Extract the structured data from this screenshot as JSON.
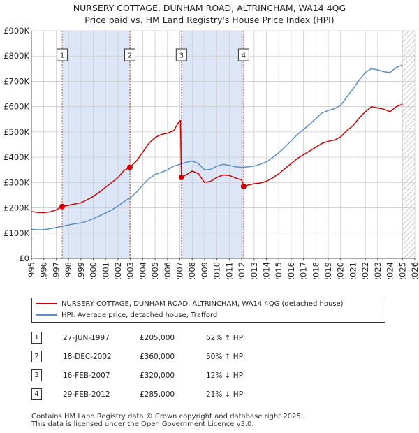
{
  "title_line1": "NURSERY COTTAGE, DUNHAM ROAD, ALTRINCHAM, WA14 4QG",
  "title_line2": "Price paid vs. HM Land Registry's House Price Index (HPI)",
  "colors": {
    "property": "#cc0000",
    "hpi": "#5b8ec9",
    "shade": "#dde6f7",
    "grid": "#cccccc",
    "hatch": "#aaaaaa"
  },
  "chart_data": {
    "type": "line",
    "title": "NURSERY COTTAGE, DUNHAM ROAD, ALTRINCHAM, WA14 4QG — Price paid vs. HM Land Registry's House Price Index (HPI)",
    "xlim": [
      1995,
      2026
    ],
    "ylim": [
      0,
      900000
    ],
    "x_ticks": [
      "1995",
      "1996",
      "1997",
      "1998",
      "1999",
      "2000",
      "2001",
      "2002",
      "2003",
      "2004",
      "2005",
      "2006",
      "2007",
      "2008",
      "2009",
      "2010",
      "2011",
      "2012",
      "2013",
      "2014",
      "2015",
      "2016",
      "2017",
      "2018",
      "2019",
      "2020",
      "2021",
      "2022",
      "2023",
      "2024",
      "2025",
      "2026"
    ],
    "y_ticks": [
      {
        "value": 0,
        "label": "£0"
      },
      {
        "value": 100000,
        "label": "£100K"
      },
      {
        "value": 200000,
        "label": "£200K"
      },
      {
        "value": 300000,
        "label": "£300K"
      },
      {
        "value": 400000,
        "label": "£400K"
      },
      {
        "value": 500000,
        "label": "£500K"
      },
      {
        "value": 600000,
        "label": "£600K"
      },
      {
        "value": 700000,
        "label": "£700K"
      },
      {
        "value": 800000,
        "label": "£800K"
      },
      {
        "value": 900000,
        "label": "£900K"
      }
    ],
    "shaded_ranges": [
      [
        1997.49,
        2002.96
      ],
      [
        2007.13,
        2012.16
      ]
    ],
    "hatched_from": 2025.0,
    "series": [
      {
        "name": "NURSERY COTTAGE, DUNHAM ROAD, ALTRINCHAM, WA14 4QG (detached house)",
        "color": "#cc0000",
        "points": [
          [
            1995.0,
            185000
          ],
          [
            1995.5,
            182000
          ],
          [
            1996.0,
            181000
          ],
          [
            1996.5,
            184000
          ],
          [
            1997.0,
            192000
          ],
          [
            1997.49,
            205000
          ],
          [
            1998.0,
            210000
          ],
          [
            1998.5,
            215000
          ],
          [
            1999.0,
            220000
          ],
          [
            1999.5,
            232000
          ],
          [
            2000.0,
            245000
          ],
          [
            2000.5,
            262000
          ],
          [
            2001.0,
            282000
          ],
          [
            2001.5,
            300000
          ],
          [
            2002.0,
            320000
          ],
          [
            2002.5,
            348000
          ],
          [
            2002.96,
            360000
          ],
          [
            2003.5,
            385000
          ],
          [
            2004.0,
            420000
          ],
          [
            2004.5,
            455000
          ],
          [
            2005.0,
            478000
          ],
          [
            2005.5,
            490000
          ],
          [
            2006.0,
            495000
          ],
          [
            2006.5,
            505000
          ],
          [
            2006.95,
            542000
          ],
          [
            2007.05,
            545000
          ],
          [
            2007.13,
            320000
          ],
          [
            2007.5,
            330000
          ],
          [
            2008.0,
            345000
          ],
          [
            2008.5,
            335000
          ],
          [
            2009.0,
            300000
          ],
          [
            2009.5,
            305000
          ],
          [
            2010.0,
            320000
          ],
          [
            2010.5,
            330000
          ],
          [
            2011.0,
            328000
          ],
          [
            2011.5,
            318000
          ],
          [
            2012.0,
            310000
          ],
          [
            2012.16,
            285000
          ],
          [
            2012.5,
            290000
          ],
          [
            2013.0,
            295000
          ],
          [
            2013.5,
            298000
          ],
          [
            2014.0,
            305000
          ],
          [
            2014.5,
            318000
          ],
          [
            2015.0,
            335000
          ],
          [
            2015.5,
            355000
          ],
          [
            2016.0,
            375000
          ],
          [
            2016.5,
            395000
          ],
          [
            2017.0,
            410000
          ],
          [
            2017.5,
            425000
          ],
          [
            2018.0,
            440000
          ],
          [
            2018.5,
            455000
          ],
          [
            2019.0,
            463000
          ],
          [
            2019.5,
            468000
          ],
          [
            2020.0,
            480000
          ],
          [
            2020.5,
            505000
          ],
          [
            2021.0,
            525000
          ],
          [
            2021.5,
            555000
          ],
          [
            2022.0,
            580000
          ],
          [
            2022.5,
            600000
          ],
          [
            2023.0,
            595000
          ],
          [
            2023.5,
            590000
          ],
          [
            2024.0,
            580000
          ],
          [
            2024.5,
            600000
          ],
          [
            2025.0,
            610000
          ]
        ]
      },
      {
        "name": "HPI: Average price, detached house, Trafford",
        "color": "#5b8ec9",
        "points": [
          [
            1995.0,
            115000
          ],
          [
            1995.5,
            113000
          ],
          [
            1996.0,
            114000
          ],
          [
            1996.5,
            117000
          ],
          [
            1997.0,
            122000
          ],
          [
            1997.5,
            127000
          ],
          [
            1998.0,
            132000
          ],
          [
            1998.5,
            137000
          ],
          [
            1999.0,
            140000
          ],
          [
            1999.5,
            147000
          ],
          [
            2000.0,
            157000
          ],
          [
            2000.5,
            168000
          ],
          [
            2001.0,
            180000
          ],
          [
            2001.5,
            192000
          ],
          [
            2002.0,
            207000
          ],
          [
            2002.5,
            225000
          ],
          [
            2003.0,
            240000
          ],
          [
            2003.5,
            262000
          ],
          [
            2004.0,
            290000
          ],
          [
            2004.5,
            315000
          ],
          [
            2005.0,
            332000
          ],
          [
            2005.5,
            340000
          ],
          [
            2006.0,
            350000
          ],
          [
            2006.5,
            365000
          ],
          [
            2007.0,
            372000
          ],
          [
            2007.5,
            380000
          ],
          [
            2008.0,
            385000
          ],
          [
            2008.5,
            375000
          ],
          [
            2009.0,
            350000
          ],
          [
            2009.5,
            352000
          ],
          [
            2010.0,
            365000
          ],
          [
            2010.5,
            372000
          ],
          [
            2011.0,
            368000
          ],
          [
            2011.5,
            362000
          ],
          [
            2012.0,
            360000
          ],
          [
            2012.5,
            362000
          ],
          [
            2013.0,
            365000
          ],
          [
            2013.5,
            372000
          ],
          [
            2014.0,
            382000
          ],
          [
            2014.5,
            398000
          ],
          [
            2015.0,
            418000
          ],
          [
            2015.5,
            440000
          ],
          [
            2016.0,
            465000
          ],
          [
            2016.5,
            490000
          ],
          [
            2017.0,
            510000
          ],
          [
            2017.5,
            530000
          ],
          [
            2018.0,
            553000
          ],
          [
            2018.5,
            575000
          ],
          [
            2019.0,
            585000
          ],
          [
            2019.5,
            592000
          ],
          [
            2020.0,
            605000
          ],
          [
            2020.5,
            638000
          ],
          [
            2021.0,
            670000
          ],
          [
            2021.5,
            705000
          ],
          [
            2022.0,
            735000
          ],
          [
            2022.5,
            750000
          ],
          [
            2023.0,
            745000
          ],
          [
            2023.5,
            738000
          ],
          [
            2024.0,
            735000
          ],
          [
            2024.5,
            755000
          ],
          [
            2025.0,
            765000
          ]
        ]
      }
    ],
    "annotations": [
      {
        "label": "1",
        "x": 1997.49,
        "value": 205000
      },
      {
        "label": "2",
        "x": 2002.96,
        "value": 360000
      },
      {
        "label": "3",
        "x": 2007.13,
        "value": 320000
      },
      {
        "label": "4",
        "x": 2012.16,
        "value": 285000
      }
    ]
  },
  "legend": {
    "property_label": "NURSERY COTTAGE, DUNHAM ROAD, ALTRINCHAM, WA14 4QG (detached house)",
    "hpi_label": "HPI: Average price, detached house, Trafford"
  },
  "sales": [
    {
      "num": "1",
      "date": "27-JUN-1997",
      "price": "£205,000",
      "hpi": "62% ↑ HPI"
    },
    {
      "num": "2",
      "date": "18-DEC-2002",
      "price": "£360,000",
      "hpi": "50% ↑ HPI"
    },
    {
      "num": "3",
      "date": "16-FEB-2007",
      "price": "£320,000",
      "hpi": "12% ↓ HPI"
    },
    {
      "num": "4",
      "date": "29-FEB-2012",
      "price": "£285,000",
      "hpi": "21% ↓ HPI"
    }
  ],
  "footer_line1": "Contains HM Land Registry data © Crown copyright and database right 2025.",
  "footer_line2": "This data is licensed under the Open Government Licence v3.0."
}
